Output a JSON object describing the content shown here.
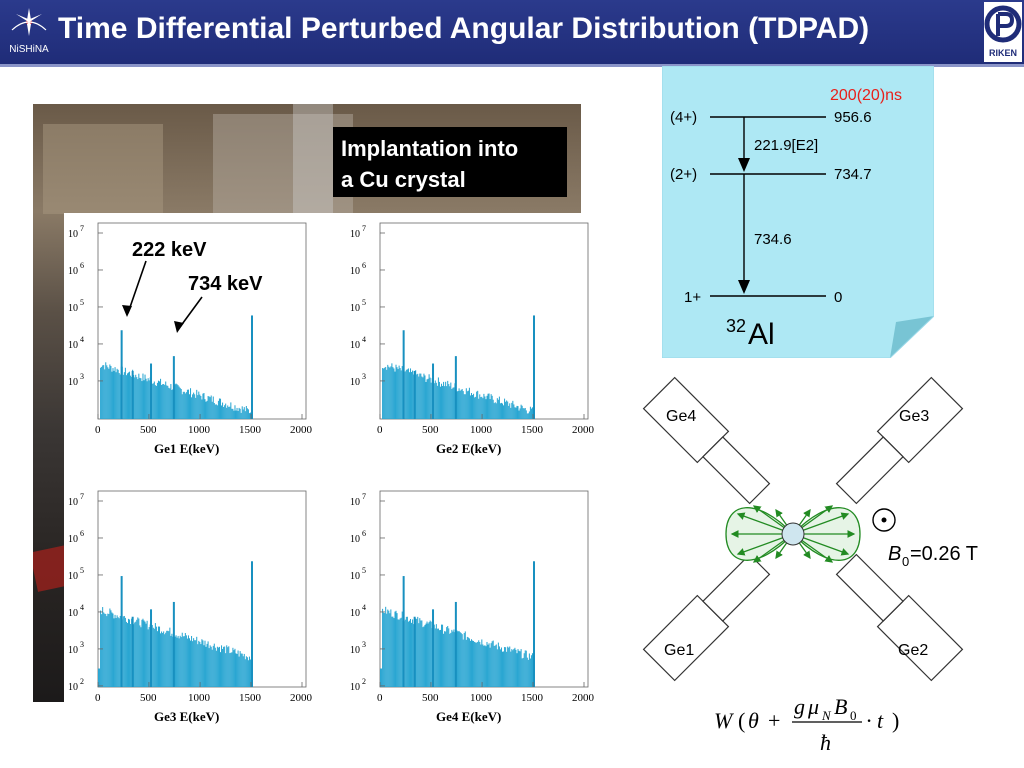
{
  "header": {
    "title": "Time Differential Perturbed Angular Distribution (TDPAD)",
    "logo_left_text": "NiSHiNA",
    "logo_right_text": "RIKEN",
    "color": "#1f2c78"
  },
  "callout": {
    "line1": "Implantation into",
    "line2": "a Cu crystal"
  },
  "spectra": {
    "annotations": [
      "222 keV",
      "734 keV"
    ],
    "x_ticks": [
      "0",
      "500",
      "1000",
      "1500",
      "2000"
    ],
    "y_exponents": [
      "7",
      "6",
      "5",
      "4",
      "3",
      "2"
    ],
    "y_base": "10",
    "panels": [
      {
        "xlabel": "Ge1 E(keV)"
      },
      {
        "xlabel": "Ge2 E(keV)"
      },
      {
        "xlabel": "Ge3 E(keV)"
      },
      {
        "xlabel": "Ge4 E(keV)"
      }
    ]
  },
  "level_scheme": {
    "lifetime": "200(20)ns",
    "levels": [
      {
        "spin": "(4+)",
        "energy": "956.6"
      },
      {
        "spin": "(2+)",
        "energy": "734.7"
      },
      {
        "spin": "1+",
        "energy": "0"
      }
    ],
    "transitions": [
      {
        "label": "221.9[E2]"
      },
      {
        "label": "734.6"
      }
    ],
    "nucleus_mass": "32",
    "nucleus_symbol": "Al"
  },
  "detectors": {
    "labels": [
      "Ge4",
      "Ge3",
      "Ge1",
      "Ge2"
    ],
    "field_label": "=0.26 T",
    "field_symbol": "B",
    "field_sub": "0"
  },
  "equation": {
    "W": "W",
    "theta": "θ",
    "plus": "+",
    "g": "g",
    "mu": "μ",
    "N": "N",
    "B": "B",
    "zero": "0",
    "hbar": "ħ",
    "dot_t": "· t",
    "lparen": "(",
    "rparen": ")"
  }
}
